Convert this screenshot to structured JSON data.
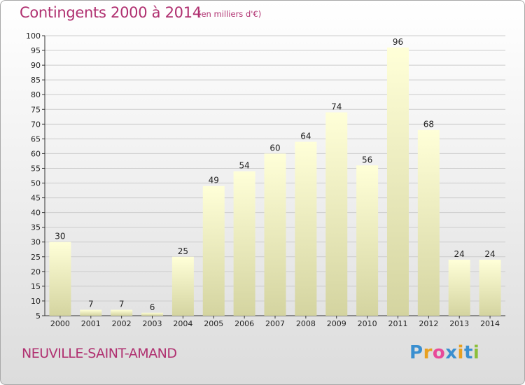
{
  "header": {
    "title": "Contingents 2000 à 2014",
    "subtitle": "(en milliers d'€)"
  },
  "footer": {
    "commune": "NEUVILLE-SAINT-AMAND",
    "logo_letters": [
      "P",
      "r",
      "o",
      "x",
      "i",
      "t",
      "i"
    ],
    "logo_colors": [
      "#3a8fd0",
      "#e8a020",
      "#e84a9a",
      "#3a8fd0",
      "#e8a020",
      "#3a8fd0",
      "#8cbf3a"
    ]
  },
  "colors": {
    "title": "#b03070",
    "bar_top": "#ffffd8",
    "bar_bottom": "#d4d4a0",
    "grid": "#cccccc"
  },
  "chart_data": {
    "type": "bar",
    "categories": [
      "2000",
      "2001",
      "2002",
      "2003",
      "2004",
      "2005",
      "2006",
      "2007",
      "2008",
      "2009",
      "2010",
      "2011",
      "2012",
      "2013",
      "2014"
    ],
    "values": [
      30,
      7,
      7,
      6,
      25,
      49,
      54,
      60,
      64,
      74,
      56,
      96,
      68,
      24,
      24
    ],
    "data_labels": [
      "30",
      "7",
      "7",
      "6",
      "25",
      "49",
      "54",
      "60",
      "64",
      "74",
      "56",
      "96",
      "68",
      "24",
      "24"
    ],
    "ylim": [
      5,
      100
    ],
    "yticks": [
      "5",
      "10",
      "15",
      "20",
      "25",
      "30",
      "35",
      "40",
      "45",
      "50",
      "55",
      "60",
      "65",
      "70",
      "75",
      "80",
      "85",
      "90",
      "95",
      "100"
    ],
    "grid": true,
    "xlabel": "",
    "ylabel": ""
  }
}
